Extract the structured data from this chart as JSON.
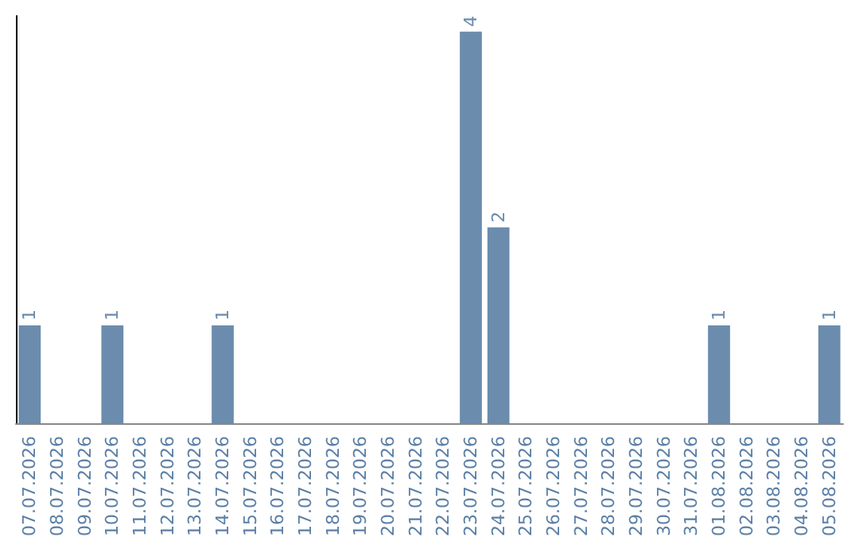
{
  "chart_data": {
    "type": "bar",
    "categories": [
      "07.07.2026",
      "08.07.2026",
      "09.07.2026",
      "10.07.2026",
      "11.07.2026",
      "12.07.2026",
      "13.07.2026",
      "14.07.2026",
      "15.07.2026",
      "16.07.2026",
      "17.07.2026",
      "18.07.2026",
      "19.07.2026",
      "20.07.2026",
      "21.07.2026",
      "22.07.2026",
      "23.07.2026",
      "24.07.2026",
      "25.07.2026",
      "26.07.2026",
      "27.07.2026",
      "28.07.2026",
      "29.07.2026",
      "30.07.2026",
      "31.07.2026",
      "01.08.2026",
      "02.08.2026",
      "03.08.2026",
      "04.08.2026",
      "05.08.2026"
    ],
    "values": [
      1,
      0,
      0,
      1,
      0,
      0,
      0,
      1,
      0,
      0,
      0,
      0,
      0,
      0,
      0,
      0,
      4,
      2,
      0,
      0,
      0,
      0,
      0,
      0,
      0,
      1,
      0,
      0,
      0,
      1
    ],
    "value_labels": [
      "1",
      null,
      null,
      "1",
      null,
      null,
      null,
      "1",
      null,
      null,
      null,
      null,
      null,
      null,
      null,
      null,
      "4",
      "2",
      null,
      null,
      null,
      null,
      null,
      null,
      null,
      "1",
      null,
      null,
      null,
      "1"
    ],
    "color": "#6b8cad",
    "tick_labels": "x"
  }
}
